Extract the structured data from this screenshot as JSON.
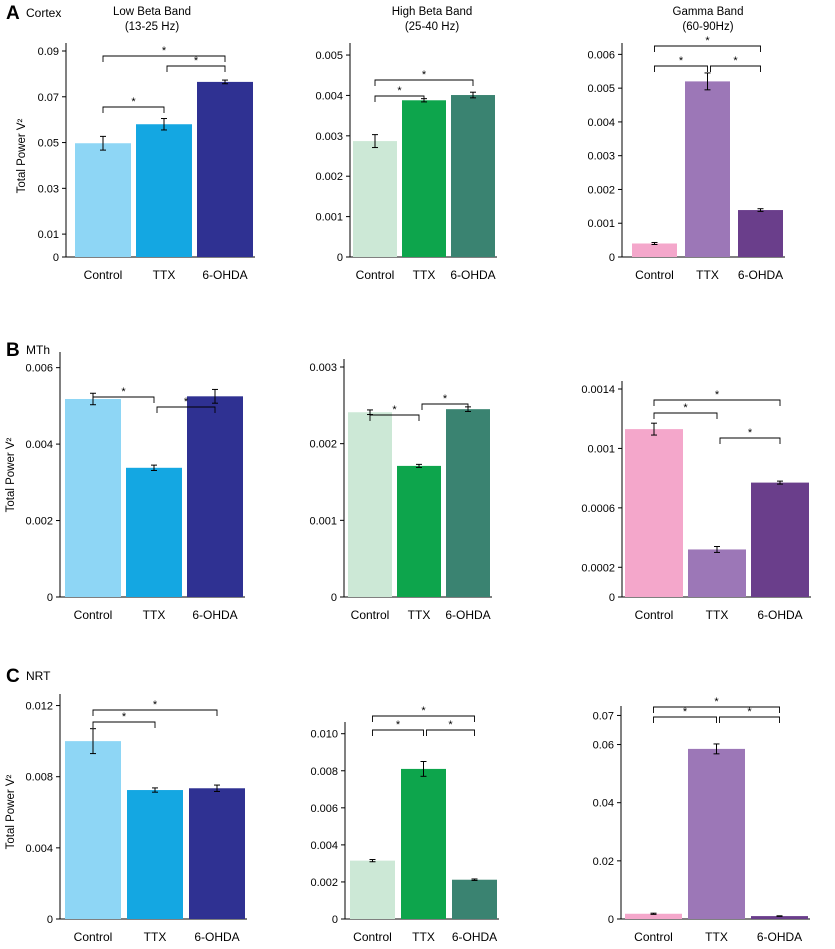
{
  "figure": {
    "panels": [
      {
        "letter": "A",
        "region": "Cortex"
      },
      {
        "letter": "B",
        "region": "MTh"
      },
      {
        "letter": "C",
        "region": "NRT"
      }
    ],
    "band_titles": [
      {
        "line1": "Low Beta Band",
        "line2": "(13-25 Hz)"
      },
      {
        "line1": "High Beta Band",
        "line2": "(25-40 Hz)"
      },
      {
        "line1": "Gamma Band",
        "line2": "(60-90Hz)"
      }
    ],
    "ylabel": "Total Power V²"
  },
  "chart_data": [
    {
      "type": "bar",
      "row": "Cortex",
      "band": "Low Beta Band (13-25 Hz)",
      "categories": [
        "Control",
        "TTX",
        "6-OHDA"
      ],
      "values": [
        0.0497,
        0.058,
        0.0765
      ],
      "errors": [
        0.003,
        0.0025,
        0.0008
      ],
      "colors": [
        "#8ed6f5",
        "#14a7e2",
        "#2f3192"
      ],
      "ylim": [
        0,
        0.09
      ],
      "ticks": [
        "0.09",
        "0.07",
        "0.05",
        "0.03",
        "0.01",
        "0"
      ],
      "tick_values": [
        0.09,
        0.07,
        0.05,
        0.03,
        0.01,
        0
      ],
      "brackets": [
        {
          "from": 0,
          "to": 1,
          "label": "*"
        },
        {
          "from": 1,
          "to": 2,
          "label": "*"
        },
        {
          "from": 0,
          "to": 2,
          "label": "*"
        }
      ]
    },
    {
      "type": "bar",
      "row": "Cortex",
      "band": "High Beta Band (25-40 Hz)",
      "categories": [
        "Control",
        "TTX",
        "6-OHDA"
      ],
      "values": [
        0.00287,
        0.00388,
        0.00401
      ],
      "errors": [
        0.00016,
        4e-05,
        7e-05
      ],
      "colors": [
        "#cce8d6",
        "#0da54c",
        "#3a8371"
      ],
      "ylim": [
        0,
        0.0051
      ],
      "ticks": [
        "0.005",
        "0.004",
        "0.003",
        "0.002",
        "0.001",
        "0"
      ],
      "tick_values": [
        0.005,
        0.004,
        0.003,
        0.002,
        0.001,
        0
      ],
      "brackets": [
        {
          "from": 0,
          "to": 1,
          "label": "*"
        },
        {
          "from": 0,
          "to": 2,
          "label": "*"
        }
      ]
    },
    {
      "type": "bar",
      "row": "Cortex",
      "band": "Gamma Band (60-90Hz)",
      "categories": [
        "Control",
        "TTX",
        "6-OHDA"
      ],
      "values": [
        0.0004,
        0.0052,
        0.00139
      ],
      "errors": [
        3e-05,
        0.00025,
        4e-05
      ],
      "colors": [
        "#f4a7cb",
        "#9c77b7",
        "#6a3e8b"
      ],
      "ylim": [
        0,
        0.0061
      ],
      "ticks": [
        "0.006",
        "0.005",
        "0.004",
        "0.003",
        "0.002",
        "0.001",
        "0"
      ],
      "tick_values": [
        0.006,
        0.005,
        0.004,
        0.003,
        0.002,
        0.001,
        0
      ],
      "brackets": [
        {
          "from": 0,
          "to": 1,
          "label": "*"
        },
        {
          "from": 1,
          "to": 2,
          "label": "*"
        },
        {
          "from": 0,
          "to": 2,
          "label": "*"
        }
      ]
    },
    {
      "type": "bar",
      "row": "MTh",
      "band": "Low Beta Band (13-25 Hz)",
      "categories": [
        "Control",
        "TTX",
        "6-OHDA"
      ],
      "values": [
        0.00518,
        0.00338,
        0.00525
      ],
      "errors": [
        0.00015,
        7e-05,
        0.00018
      ],
      "colors": [
        "#8ed6f5",
        "#14a7e2",
        "#2f3192"
      ],
      "ylim": [
        0,
        0.0062
      ],
      "ticks": [
        "0.006",
        "0.004",
        "0.002",
        "0"
      ],
      "tick_values": [
        0.006,
        0.004,
        0.002,
        0
      ],
      "brackets": [
        {
          "from": 0,
          "to": 1,
          "label": "*"
        },
        {
          "from": 1,
          "to": 2,
          "label": "*"
        }
      ]
    },
    {
      "type": "bar",
      "row": "MTh",
      "band": "High Beta Band (25-40 Hz)",
      "categories": [
        "Control",
        "TTX",
        "6-OHDA"
      ],
      "values": [
        0.00241,
        0.00171,
        0.00245
      ],
      "errors": [
        3e-05,
        2e-05,
        3e-05
      ],
      "colors": [
        "#cce8d6",
        "#0da54c",
        "#3a8371"
      ],
      "ylim": [
        0,
        0.003
      ],
      "ticks": [
        "0.003",
        "0.002",
        "0.001",
        "0"
      ],
      "tick_values": [
        0.003,
        0.002,
        0.001,
        0
      ],
      "brackets": [
        {
          "from": 0,
          "to": 1,
          "label": "*"
        },
        {
          "from": 1,
          "to": 2,
          "label": "*"
        }
      ]
    },
    {
      "type": "bar",
      "row": "MTh",
      "band": "Gamma Band (60-90Hz)",
      "categories": [
        "Control",
        "TTX",
        "6-OHDA"
      ],
      "values": [
        0.00113,
        0.00032,
        0.00077
      ],
      "errors": [
        4e-05,
        2e-05,
        1e-05
      ],
      "colors": [
        "#f4a7cb",
        "#9c77b7",
        "#6a3e8b"
      ],
      "ylim": [
        0,
        0.0014
      ],
      "ticks": [
        "0.0014",
        "0.001",
        "0.0006",
        "0.0002",
        "0"
      ],
      "tick_values": [
        0.0014,
        0.001,
        0.0006,
        0.0002,
        0
      ],
      "brackets": [
        {
          "from": 0,
          "to": 1,
          "label": "*"
        },
        {
          "from": 1,
          "to": 2,
          "label": "*"
        },
        {
          "from": 0,
          "to": 2,
          "label": "*"
        }
      ]
    },
    {
      "type": "bar",
      "row": "NRT",
      "band": "Low Beta Band (13-25 Hz)",
      "categories": [
        "Control",
        "TTX",
        "6-OHDA"
      ],
      "values": [
        0.01,
        0.00725,
        0.00735
      ],
      "errors": [
        0.0007,
        0.00012,
        0.00018
      ],
      "colors": [
        "#8ed6f5",
        "#14a7e2",
        "#2f3192"
      ],
      "ylim": [
        0,
        0.0122
      ],
      "ticks": [
        "0.012",
        "0.008",
        "0.004",
        "0"
      ],
      "tick_values": [
        0.012,
        0.008,
        0.004,
        0
      ],
      "brackets": [
        {
          "from": 0,
          "to": 1,
          "label": "*"
        },
        {
          "from": 0,
          "to": 2,
          "label": "*"
        }
      ]
    },
    {
      "type": "bar",
      "row": "NRT",
      "band": "High Beta Band (25-40 Hz)",
      "categories": [
        "Control",
        "TTX",
        "6-OHDA"
      ],
      "values": [
        0.00315,
        0.0081,
        0.00212
      ],
      "errors": [
        6e-05,
        0.0004,
        4e-05
      ],
      "colors": [
        "#cce8d6",
        "#0da54c",
        "#3a8371"
      ],
      "ylim": [
        0,
        0.0102
      ],
      "ticks": [
        "0.010",
        "0.008",
        "0.006",
        "0.004",
        "0.002",
        "0"
      ],
      "tick_values": [
        0.01,
        0.008,
        0.006,
        0.004,
        0.002,
        0
      ],
      "brackets": [
        {
          "from": 0,
          "to": 1,
          "label": "*"
        },
        {
          "from": 1,
          "to": 2,
          "label": "*"
        },
        {
          "from": 0,
          "to": 2,
          "label": "*"
        }
      ]
    },
    {
      "type": "bar",
      "row": "NRT",
      "band": "Gamma Band (60-90Hz)",
      "categories": [
        "Control",
        "TTX",
        "6-OHDA"
      ],
      "values": [
        0.0018,
        0.0585,
        0.001
      ],
      "errors": [
        0.0002,
        0.0017,
        0.0001
      ],
      "colors": [
        "#f4a7cb",
        "#9c77b7",
        "#6a3e8b"
      ],
      "ylim": [
        0,
        0.0705
      ],
      "ticks": [
        "0.07",
        "0.06",
        "0.04",
        "0.02",
        "0"
      ],
      "tick_values": [
        0.07,
        0.06,
        0.04,
        0.02,
        0
      ],
      "brackets": [
        {
          "from": 0,
          "to": 1,
          "label": "*"
        },
        {
          "from": 1,
          "to": 2,
          "label": "*"
        },
        {
          "from": 0,
          "to": 2,
          "label": "*"
        }
      ]
    }
  ]
}
